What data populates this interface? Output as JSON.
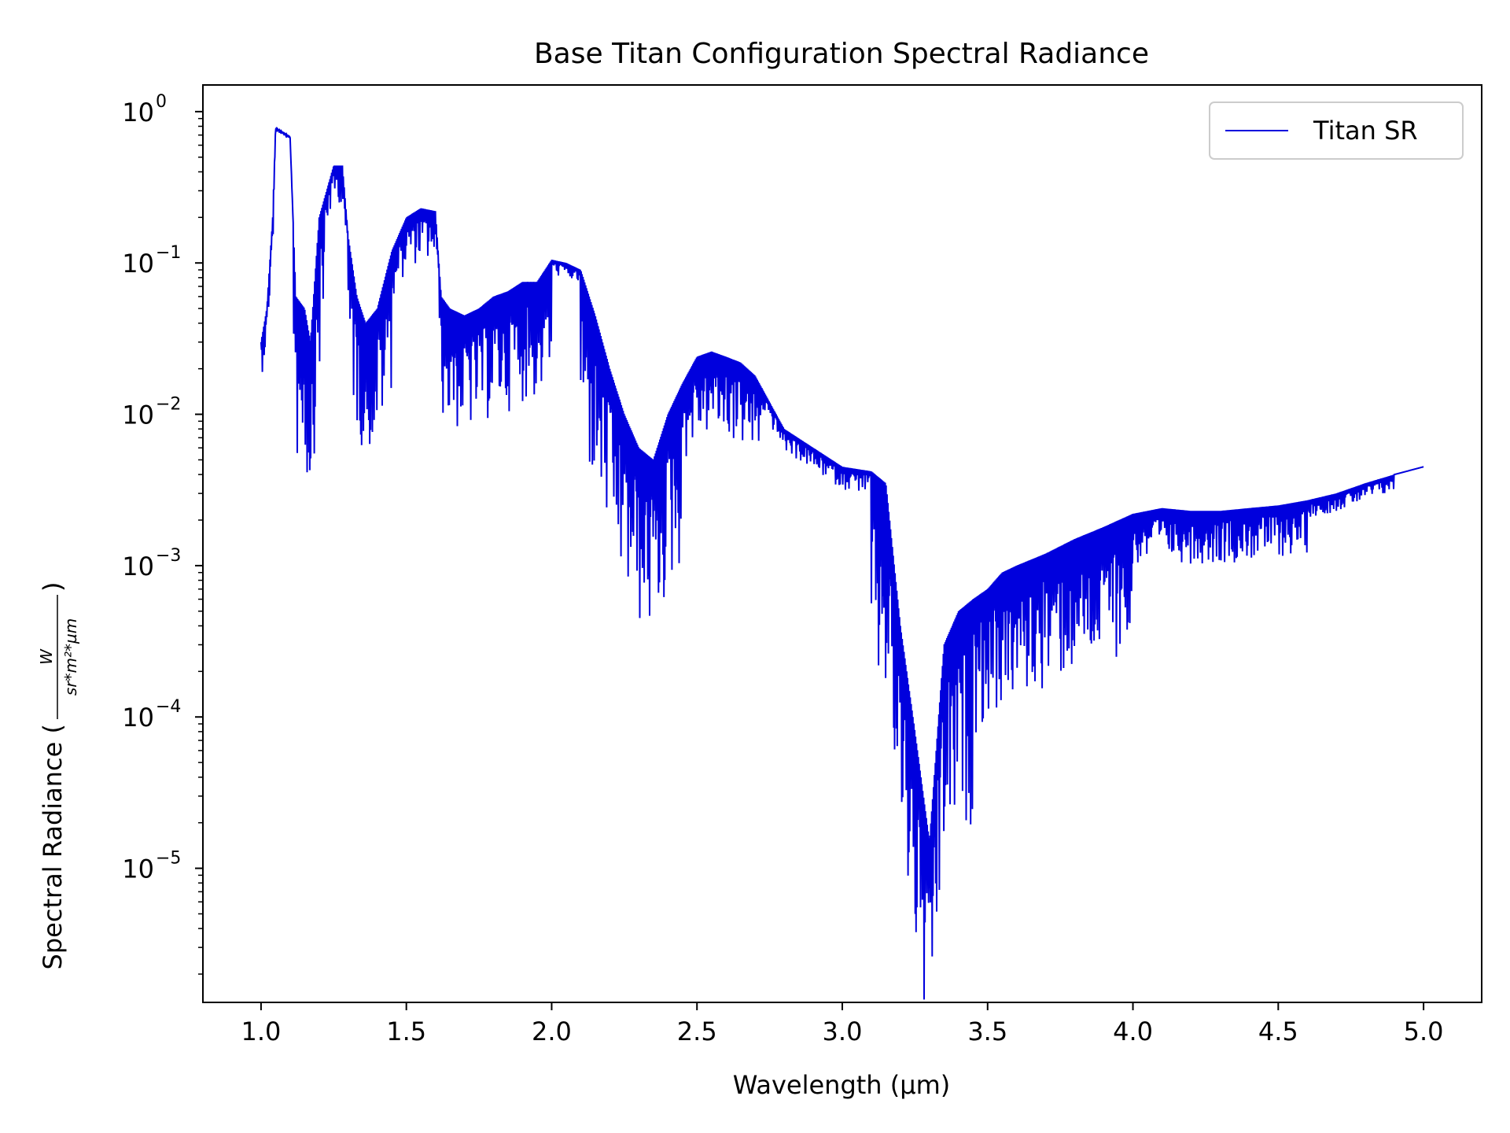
{
  "chart_data": {
    "type": "line",
    "title": "Base Titan Configuration Spectral Radiance",
    "xlabel": "Wavelength (µm)",
    "ylabel_prefix": "Spectral Radiance (",
    "ylabel_suffix": ")",
    "ylabel_unit_numerator": "W",
    "ylabel_unit_denominator": "sr*m²*µm",
    "xlim": [
      0.8,
      5.2
    ],
    "ylim": [
      1.3e-06,
      1.5
    ],
    "yscale": "log",
    "xticks": [
      1.0,
      1.5,
      2.0,
      2.5,
      3.0,
      3.5,
      4.0,
      4.5,
      5.0
    ],
    "xtick_labels": [
      "1.0",
      "1.5",
      "2.0",
      "2.5",
      "3.0",
      "3.5",
      "4.0",
      "4.5",
      "5.0"
    ],
    "yticks": [
      1,
      0.1,
      0.01,
      0.001,
      0.0001,
      1e-05
    ],
    "ytick_labels": [
      {
        "base": "10",
        "exp": "0"
      },
      {
        "base": "10",
        "exp": "−1"
      },
      {
        "base": "10",
        "exp": "−2"
      },
      {
        "base": "10",
        "exp": "−3"
      },
      {
        "base": "10",
        "exp": "−4"
      },
      {
        "base": "10",
        "exp": "−5"
      }
    ],
    "grid": false,
    "legend_position": "top-right",
    "series": [
      {
        "name": "Titan SR",
        "color": "#0000dd",
        "x": [
          1.0,
          1.02,
          1.04,
          1.05,
          1.1,
          1.12,
          1.15,
          1.17,
          1.2,
          1.25,
          1.28,
          1.3,
          1.33,
          1.36,
          1.4,
          1.45,
          1.5,
          1.55,
          1.6,
          1.62,
          1.65,
          1.7,
          1.75,
          1.8,
          1.85,
          1.9,
          1.95,
          2.0,
          2.05,
          2.1,
          2.15,
          2.2,
          2.25,
          2.3,
          2.35,
          2.4,
          2.45,
          2.5,
          2.55,
          2.6,
          2.65,
          2.7,
          2.75,
          2.8,
          2.9,
          3.0,
          3.1,
          3.15,
          3.2,
          3.25,
          3.3,
          3.35,
          3.4,
          3.45,
          3.5,
          3.55,
          3.6,
          3.7,
          3.8,
          3.9,
          4.0,
          4.1,
          4.2,
          4.3,
          4.4,
          4.5,
          4.6,
          4.7,
          4.8,
          4.9,
          5.0
        ],
        "y": [
          0.03,
          0.05,
          0.2,
          0.78,
          0.68,
          0.06,
          0.05,
          0.03,
          0.2,
          0.44,
          0.44,
          0.15,
          0.06,
          0.04,
          0.05,
          0.12,
          0.2,
          0.23,
          0.22,
          0.06,
          0.05,
          0.045,
          0.05,
          0.06,
          0.065,
          0.075,
          0.075,
          0.105,
          0.1,
          0.09,
          0.045,
          0.02,
          0.01,
          0.006,
          0.005,
          0.01,
          0.016,
          0.024,
          0.026,
          0.024,
          0.022,
          0.018,
          0.012,
          0.008,
          0.006,
          0.0045,
          0.0042,
          0.0035,
          0.0004,
          8e-05,
          1.5e-05,
          0.0003,
          0.0005,
          0.0006,
          0.0007,
          0.0009,
          0.001,
          0.0012,
          0.0015,
          0.0018,
          0.0022,
          0.0024,
          0.0023,
          0.0023,
          0.0024,
          0.0025,
          0.0027,
          0.003,
          0.0035,
          0.004,
          0.0045
        ]
      }
    ]
  }
}
